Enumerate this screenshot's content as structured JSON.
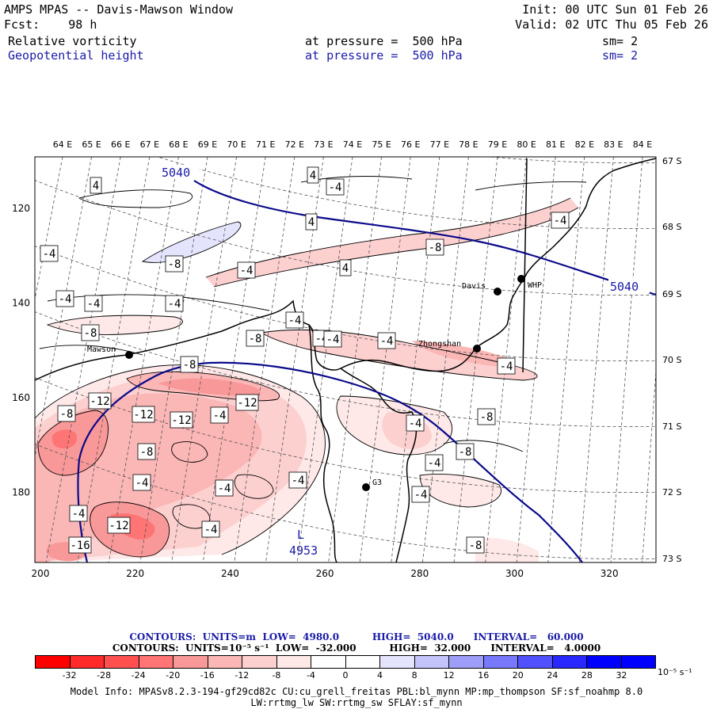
{
  "header": {
    "title": "AMPS MPAS -- Davis-Mawson Window",
    "fcst": "Fcst:    98 h",
    "init": "Init: 00 UTC Sun 01 Feb 26",
    "valid": "Valid: 02 UTC Thu 05 Feb 26",
    "field1": {
      "name": "Relative vorticity",
      "level": "at pressure =  500 hPa",
      "sm": "sm= 2"
    },
    "field2": {
      "name": "Geopotential height",
      "level": "at pressure =  500 hPa",
      "sm": "sm= 2"
    }
  },
  "map": {
    "lon_labels": [
      "64 E",
      "65 E",
      "66 E",
      "67 E",
      "68 E",
      "69 E",
      "70 E",
      "71 E",
      "72 E",
      "73 E",
      "74 E",
      "75 E",
      "76 E",
      "77 E",
      "78 E",
      "79 E",
      "80 E",
      "81 E",
      "82 E",
      "83 E",
      "84 E"
    ],
    "lat_labels": [
      "67 S",
      "68 S",
      "69 S",
      "70 S",
      "71 S",
      "72 S",
      "73 S"
    ],
    "x_ticks": [
      "200",
      "220",
      "240",
      "260",
      "280",
      "300",
      "320"
    ],
    "y_ticks": [
      "120",
      "140",
      "160",
      "180"
    ],
    "stations": [
      {
        "name": "Mawson"
      },
      {
        "name": "Davis"
      },
      {
        "name": "WHP"
      },
      {
        "name": "Zhongshan"
      },
      {
        "name": "G3"
      }
    ],
    "height_labels": [
      "5040",
      "5040"
    ],
    "low_marker": {
      "letter": "L",
      "value": "4953"
    },
    "vort_labels": [
      "4",
      "-4",
      "4",
      "4",
      "-4",
      "-8",
      "-4",
      "-8",
      "4",
      "-4",
      "-4",
      "-4",
      "-4",
      "-4",
      "-8",
      "-8",
      "-4",
      "-4",
      "-4",
      "-8",
      "-12",
      "-12",
      "-8",
      "-12",
      "-8",
      "-4",
      "-4",
      "-8",
      "-8",
      "-4",
      "-4",
      "-4",
      "-4",
      "-4",
      "-4",
      "-8",
      "-4",
      "-12",
      "-16",
      "-12",
      "-4"
    ],
    "colors": {
      "coast": "#000000",
      "height_contour": "#0a0a8a",
      "grid": "#555555"
    }
  },
  "footer": {
    "contours1": "CONTOURS:  UNITS=m  LOW=  4980.0          HIGH=  5040.0      INTERVAL=   60.000",
    "contours2": "CONTOURS:  UNITS=10⁻⁵ s⁻¹  LOW=  -32.000          HIGH=  32.000      INTERVAL=   4.0000",
    "colorbar_ticks": [
      "-32",
      "-28",
      "-24",
      "-20",
      "-16",
      "-12",
      "-8",
      "-4",
      "0",
      "4",
      "8",
      "12",
      "16",
      "20",
      "24",
      "28",
      "32"
    ],
    "colorbar_unit": "10⁻⁵ s⁻¹",
    "colorbar_colors": [
      "#ff0000",
      "#ff2a2a",
      "#ff5050",
      "#ff7474",
      "#f99898",
      "#fbb6b6",
      "#fdd0d0",
      "#fee8e8",
      "#ffffff",
      "#ffffff",
      "#e4e4fd",
      "#c4c4fb",
      "#9e9ef8",
      "#7878fb",
      "#5252fd",
      "#2828fe",
      "#0000ff"
    ],
    "model_info_1": "Model Info: MPASv8.2.3-194-gf29cd82c CU:cu_grell_freitas PBL:bl_mynn MP:mp_thompson SF:sf_noahmp 8.0",
    "model_info_2": "LW:rrtmg_lw SW:rrtmg_sw SFLAY:sf_mynn"
  }
}
